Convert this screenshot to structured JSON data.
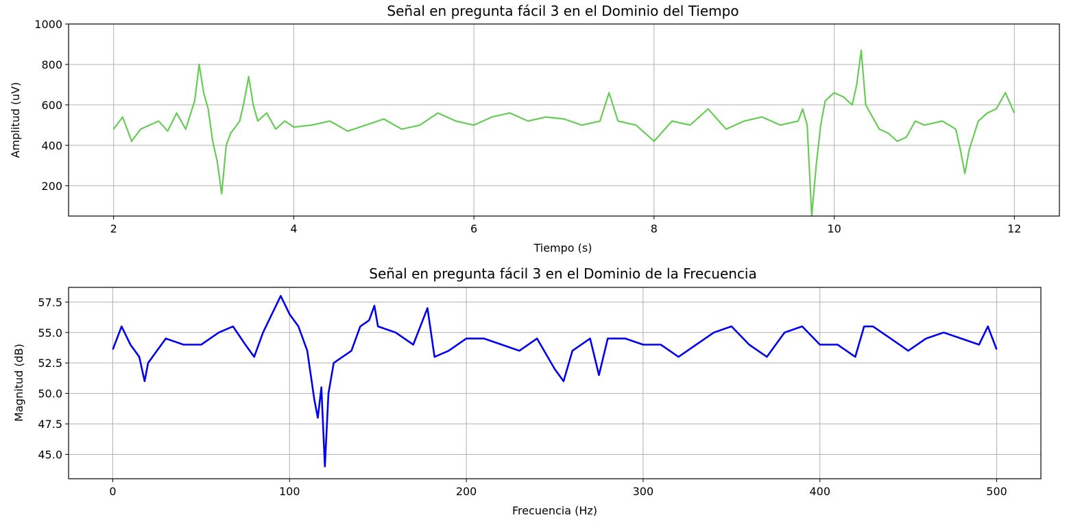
{
  "chart_data": [
    {
      "type": "line",
      "title": "Señal en pregunta fácil 3 en el Dominio del Tiempo",
      "xlabel": "Tiempo (s)",
      "ylabel": "Amplitud (uV)",
      "xlim": [
        1.5,
        12.5
      ],
      "ylim": [
        50,
        1000
      ],
      "xticks": [
        2,
        4,
        6,
        8,
        10,
        12
      ],
      "yticks": [
        200,
        400,
        600,
        800,
        1000
      ],
      "grid": true,
      "legend": "none",
      "series": [
        {
          "color": "#66cc55",
          "x": [
            2.0,
            2.1,
            2.2,
            2.3,
            2.4,
            2.5,
            2.6,
            2.7,
            2.8,
            2.9,
            2.95,
            3.0,
            3.05,
            3.1,
            3.15,
            3.2,
            3.25,
            3.3,
            3.4,
            3.45,
            3.5,
            3.55,
            3.6,
            3.7,
            3.8,
            3.9,
            4.0,
            4.2,
            4.4,
            4.6,
            4.8,
            5.0,
            5.2,
            5.4,
            5.6,
            5.8,
            6.0,
            6.2,
            6.4,
            6.6,
            6.8,
            7.0,
            7.2,
            7.4,
            7.5,
            7.6,
            7.8,
            7.9,
            8.0,
            8.2,
            8.4,
            8.6,
            8.8,
            9.0,
            9.2,
            9.4,
            9.6,
            9.65,
            9.7,
            9.75,
            9.8,
            9.85,
            9.9,
            10.0,
            10.1,
            10.2,
            10.25,
            10.3,
            10.35,
            10.4,
            10.5,
            10.6,
            10.7,
            10.8,
            10.9,
            11.0,
            11.2,
            11.35,
            11.4,
            11.45,
            11.5,
            11.6,
            11.7,
            11.8,
            11.9,
            12.0
          ],
          "y": [
            480,
            540,
            420,
            480,
            500,
            520,
            470,
            560,
            480,
            620,
            800,
            660,
            580,
            420,
            320,
            160,
            400,
            460,
            520,
            620,
            740,
            600,
            520,
            560,
            480,
            520,
            490,
            500,
            520,
            470,
            500,
            530,
            480,
            500,
            560,
            520,
            500,
            540,
            560,
            520,
            540,
            530,
            500,
            520,
            660,
            520,
            500,
            460,
            420,
            520,
            500,
            580,
            480,
            520,
            540,
            500,
            520,
            580,
            500,
            50,
            300,
            500,
            620,
            660,
            640,
            600,
            700,
            870,
            600,
            560,
            480,
            460,
            420,
            440,
            520,
            500,
            520,
            480,
            380,
            260,
            380,
            520,
            560,
            580,
            660,
            560
          ]
        }
      ]
    },
    {
      "type": "line",
      "title": "Señal en pregunta fácil 3 en el Dominio de la Frecuencia",
      "xlabel": "Frecuencia (Hz)",
      "ylabel": "Magnitud (dB)",
      "xlim": [
        -25,
        525
      ],
      "ylim": [
        43,
        58.7
      ],
      "xticks": [
        0,
        100,
        200,
        300,
        400,
        500
      ],
      "yticks": [
        45.0,
        47.5,
        50.0,
        52.5,
        55.0,
        57.5
      ],
      "grid": true,
      "legend": "none",
      "series": [
        {
          "color": "#0000ee",
          "x": [
            0,
            5,
            10,
            15,
            18,
            20,
            25,
            30,
            40,
            50,
            60,
            68,
            75,
            80,
            85,
            90,
            95,
            100,
            105,
            110,
            114,
            116,
            118,
            120,
            122,
            125,
            130,
            135,
            140,
            145,
            148,
            150,
            160,
            170,
            178,
            182,
            190,
            200,
            210,
            220,
            230,
            240,
            250,
            255,
            260,
            270,
            275,
            280,
            290,
            300,
            310,
            320,
            330,
            340,
            350,
            360,
            370,
            380,
            390,
            400,
            410,
            420,
            425,
            430,
            440,
            450,
            460,
            470,
            480,
            490,
            495,
            500
          ],
          "y": [
            53.6,
            55.5,
            54.0,
            53.0,
            51.0,
            52.5,
            53.5,
            54.5,
            54.0,
            54.0,
            55.0,
            55.5,
            54.0,
            53.0,
            55.0,
            56.5,
            58.0,
            56.5,
            55.5,
            53.5,
            49.5,
            48.0,
            50.5,
            44.0,
            50.0,
            52.5,
            53.0,
            53.5,
            55.5,
            56.0,
            57.2,
            55.5,
            55.0,
            54.0,
            57.0,
            53.0,
            53.5,
            54.5,
            54.5,
            54.0,
            53.5,
            54.5,
            52.0,
            51.0,
            53.5,
            54.5,
            51.5,
            54.5,
            54.5,
            54.0,
            54.0,
            53.0,
            54.0,
            55.0,
            55.5,
            54.0,
            53.0,
            55.0,
            55.5,
            54.0,
            54.0,
            53.0,
            55.5,
            55.5,
            54.5,
            53.5,
            54.5,
            55.0,
            54.5,
            54.0,
            55.5,
            53.6
          ]
        }
      ]
    }
  ]
}
